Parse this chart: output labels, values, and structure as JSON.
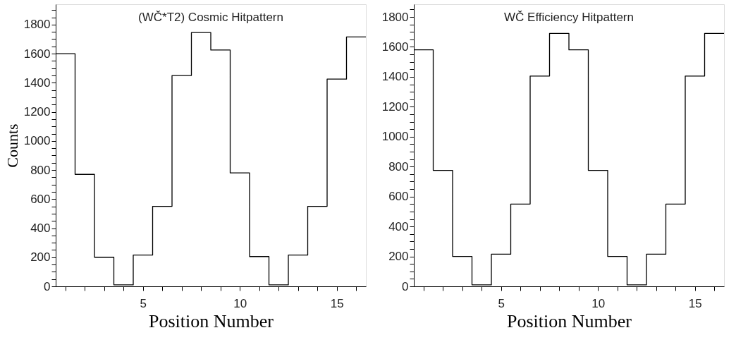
{
  "chart_data": [
    {
      "type": "histogram",
      "title": "(WČ*T2) Cosmic Hitpattern",
      "xlabel": "Position Number",
      "ylabel": "Counts",
      "color": "#000000",
      "bins": [
        0.5,
        1.5,
        2.5,
        3.5,
        4.5,
        5.5,
        6.5,
        7.5,
        8.5,
        9.5,
        10.5,
        11.5,
        12.5,
        13.5,
        14.5,
        15.5,
        16.5
      ],
      "values": [
        1600,
        770,
        200,
        10,
        215,
        550,
        1450,
        1745,
        1625,
        780,
        205,
        10,
        215,
        550,
        1425,
        1715
      ],
      "xlim": [
        0.5,
        16.5
      ],
      "ylim": [
        0,
        1940
      ],
      "xticks": [
        {
          "value": 1,
          "label": null
        },
        {
          "value": 2,
          "label": null
        },
        {
          "value": 3,
          "label": null
        },
        {
          "value": 4,
          "label": null
        },
        5,
        {
          "value": 6,
          "label": null
        },
        {
          "value": 7,
          "label": null
        },
        {
          "value": 8,
          "label": null
        },
        {
          "value": 9,
          "label": null
        },
        10,
        {
          "value": 11,
          "label": null
        },
        {
          "value": 12,
          "label": null
        },
        {
          "value": 13,
          "label": null
        },
        {
          "value": 14,
          "label": null
        },
        15,
        {
          "value": 16,
          "label": null
        }
      ],
      "yticks": [
        0,
        {
          "value": 50,
          "label": null
        },
        {
          "value": 100,
          "label": null
        },
        {
          "value": 150,
          "label": null
        },
        200,
        {
          "value": 250,
          "label": null
        },
        {
          "value": 300,
          "label": null
        },
        {
          "value": 350,
          "label": null
        },
        400,
        {
          "value": 450,
          "label": null
        },
        {
          "value": 500,
          "label": null
        },
        {
          "value": 550,
          "label": null
        },
        600,
        {
          "value": 650,
          "label": null
        },
        {
          "value": 700,
          "label": null
        },
        {
          "value": 750,
          "label": null
        },
        800,
        {
          "value": 850,
          "label": null
        },
        {
          "value": 900,
          "label": null
        },
        {
          "value": 950,
          "label": null
        },
        1000,
        {
          "value": 1050,
          "label": null
        },
        {
          "value": 1100,
          "label": null
        },
        {
          "value": 1150,
          "label": null
        },
        1200,
        {
          "value": 1250,
          "label": null
        },
        {
          "value": 1300,
          "label": null
        },
        {
          "value": 1350,
          "label": null
        },
        1400,
        {
          "value": 1450,
          "label": null
        },
        {
          "value": 1500,
          "label": null
        },
        {
          "value": 1550,
          "label": null
        },
        1600,
        {
          "value": 1650,
          "label": null
        },
        {
          "value": 1700,
          "label": null
        },
        {
          "value": 1750,
          "label": null
        },
        1800,
        {
          "value": 1850,
          "label": null
        },
        {
          "value": 1900,
          "label": null
        }
      ]
    },
    {
      "type": "histogram",
      "title": "WČ Efficiency Hitpattern",
      "xlabel": "Position Number",
      "color": "#000000",
      "bins": [
        0.5,
        1.5,
        2.5,
        3.5,
        4.5,
        5.5,
        6.5,
        7.5,
        8.5,
        9.5,
        10.5,
        11.5,
        12.5,
        13.5,
        14.5,
        15.5,
        16.5
      ],
      "values": [
        1580,
        775,
        200,
        10,
        215,
        550,
        1405,
        1690,
        1580,
        775,
        200,
        10,
        215,
        550,
        1405,
        1690
      ],
      "xlim": [
        0.5,
        16.5
      ],
      "ylim": [
        0,
        1885
      ],
      "xticks": [
        {
          "value": 1,
          "label": null
        },
        {
          "value": 2,
          "label": null
        },
        {
          "value": 3,
          "label": null
        },
        {
          "value": 4,
          "label": null
        },
        5,
        {
          "value": 6,
          "label": null
        },
        {
          "value": 7,
          "label": null
        },
        {
          "value": 8,
          "label": null
        },
        {
          "value": 9,
          "label": null
        },
        10,
        {
          "value": 11,
          "label": null
        },
        {
          "value": 12,
          "label": null
        },
        {
          "value": 13,
          "label": null
        },
        {
          "value": 14,
          "label": null
        },
        15,
        {
          "value": 16,
          "label": null
        }
      ],
      "yticks": [
        0,
        {
          "value": 50,
          "label": null
        },
        {
          "value": 100,
          "label": null
        },
        {
          "value": 150,
          "label": null
        },
        200,
        {
          "value": 250,
          "label": null
        },
        {
          "value": 300,
          "label": null
        },
        {
          "value": 350,
          "label": null
        },
        400,
        {
          "value": 450,
          "label": null
        },
        {
          "value": 500,
          "label": null
        },
        {
          "value": 550,
          "label": null
        },
        600,
        {
          "value": 650,
          "label": null
        },
        {
          "value": 700,
          "label": null
        },
        {
          "value": 750,
          "label": null
        },
        800,
        {
          "value": 850,
          "label": null
        },
        {
          "value": 900,
          "label": null
        },
        {
          "value": 950,
          "label": null
        },
        1000,
        {
          "value": 1050,
          "label": null
        },
        {
          "value": 1100,
          "label": null
        },
        {
          "value": 1150,
          "label": null
        },
        1200,
        {
          "value": 1250,
          "label": null
        },
        {
          "value": 1300,
          "label": null
        },
        {
          "value": 1350,
          "label": null
        },
        1400,
        {
          "value": 1450,
          "label": null
        },
        {
          "value": 1500,
          "label": null
        },
        {
          "value": 1550,
          "label": null
        },
        1600,
        {
          "value": 1650,
          "label": null
        },
        {
          "value": 1700,
          "label": null
        },
        {
          "value": 1750,
          "label": null
        },
        1800,
        {
          "value": 1850,
          "label": null
        }
      ]
    }
  ]
}
